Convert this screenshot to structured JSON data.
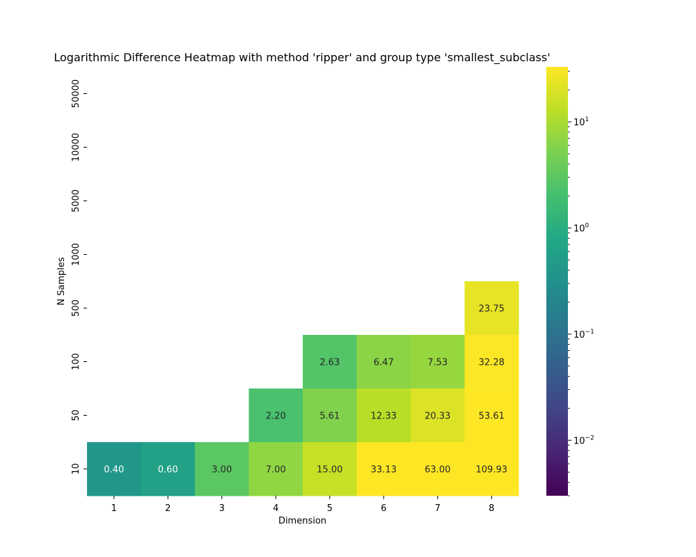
{
  "chart_data": {
    "type": "heatmap",
    "title": "Logarithmic Difference Heatmap with method 'ripper' and group type 'smallest_subclass'",
    "xlabel": "Dimension",
    "ylabel": "N Samples",
    "x_categories": [
      "1",
      "2",
      "3",
      "4",
      "5",
      "6",
      "7",
      "8"
    ],
    "y_categories_top_to_bottom": [
      "50000",
      "10000",
      "5000",
      "1000",
      "500",
      "100",
      "50",
      "10"
    ],
    "cells": [
      {
        "x": "8",
        "y": "500",
        "value": 23.75,
        "label": "23.75"
      },
      {
        "x": "5",
        "y": "100",
        "value": 2.63,
        "label": "2.63"
      },
      {
        "x": "6",
        "y": "100",
        "value": 6.47,
        "label": "6.47"
      },
      {
        "x": "7",
        "y": "100",
        "value": 7.53,
        "label": "7.53"
      },
      {
        "x": "8",
        "y": "100",
        "value": 32.28,
        "label": "32.28"
      },
      {
        "x": "4",
        "y": "50",
        "value": 2.2,
        "label": "2.20"
      },
      {
        "x": "5",
        "y": "50",
        "value": 5.61,
        "label": "5.61"
      },
      {
        "x": "6",
        "y": "50",
        "value": 12.33,
        "label": "12.33"
      },
      {
        "x": "7",
        "y": "50",
        "value": 20.33,
        "label": "20.33"
      },
      {
        "x": "8",
        "y": "50",
        "value": 53.61,
        "label": "53.61"
      },
      {
        "x": "1",
        "y": "10",
        "value": 0.4,
        "label": "0.40"
      },
      {
        "x": "2",
        "y": "10",
        "value": 0.6,
        "label": "0.60"
      },
      {
        "x": "3",
        "y": "10",
        "value": 3.0,
        "label": "3.00"
      },
      {
        "x": "4",
        "y": "10",
        "value": 7.0,
        "label": "7.00"
      },
      {
        "x": "5",
        "y": "10",
        "value": 15.0,
        "label": "15.00"
      },
      {
        "x": "6",
        "y": "10",
        "value": 33.13,
        "label": "33.13"
      },
      {
        "x": "7",
        "y": "10",
        "value": 63.0,
        "label": "63.00"
      },
      {
        "x": "8",
        "y": "10",
        "value": 109.93,
        "label": "109.93"
      }
    ],
    "color_scale": {
      "colormap": "viridis",
      "scale": "log",
      "vmin": 0.003,
      "vmax": 33,
      "major_ticks": [
        {
          "value": 0.01,
          "mantissa": "10",
          "exponent": "−2"
        },
        {
          "value": 0.1,
          "mantissa": "10",
          "exponent": "−1"
        },
        {
          "value": 1,
          "mantissa": "10",
          "exponent": "0"
        },
        {
          "value": 10,
          "mantissa": "10",
          "exponent": "1"
        }
      ]
    },
    "grid": false,
    "legend": "colorbar-right"
  }
}
